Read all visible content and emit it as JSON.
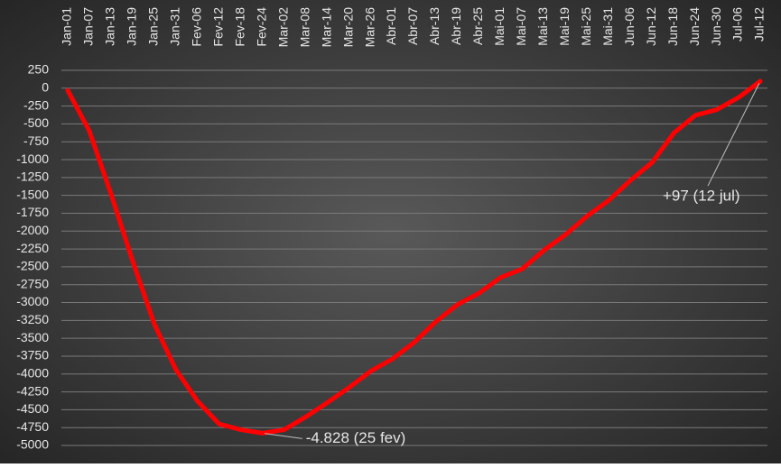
{
  "chart_data": {
    "type": "line",
    "categories": [
      "Jan-01",
      "Jan-07",
      "Jan-13",
      "Jan-19",
      "Jan-25",
      "Jan-31",
      "Fev-06",
      "Fev-12",
      "Fev-18",
      "Fev-24",
      "Mar-02",
      "Mar-08",
      "Mar-14",
      "Mar-20",
      "Mar-26",
      "Abr-01",
      "Abr-07",
      "Abr-13",
      "Abr-19",
      "Abr-25",
      "Mai-01",
      "Mai-07",
      "Mai-13",
      "Mai-19",
      "Mai-25",
      "Mai-31",
      "Jun-06",
      "Jun-12",
      "Jun-18",
      "Jun-24",
      "Jun-30",
      "Jul-06",
      "Jul-12"
    ],
    "values": [
      -30,
      -600,
      -1480,
      -2420,
      -3300,
      -3940,
      -4380,
      -4700,
      -4780,
      -4828,
      -4780,
      -4600,
      -4400,
      -4190,
      -3960,
      -3790,
      -3560,
      -3270,
      -3030,
      -2870,
      -2650,
      -2530,
      -2270,
      -2050,
      -1790,
      -1570,
      -1290,
      -1040,
      -630,
      -380,
      -300,
      -130,
      97
    ],
    "color": "#ff0000",
    "ylim": [
      -5000,
      250
    ],
    "yticks": [
      250,
      0,
      -250,
      -500,
      -750,
      -1000,
      -1250,
      -1500,
      -1750,
      -2000,
      -2250,
      -2500,
      -2750,
      -3000,
      -3250,
      -3500,
      -3750,
      -4000,
      -4250,
      -4500,
      -4750,
      -5000
    ],
    "grid": true,
    "annotations": [
      {
        "label": "-4.828 (25 fev)",
        "category": "Fev-24",
        "value": -4828
      },
      {
        "label": "+97 (12 jul)",
        "category": "Jul-12",
        "value": 97
      }
    ]
  }
}
